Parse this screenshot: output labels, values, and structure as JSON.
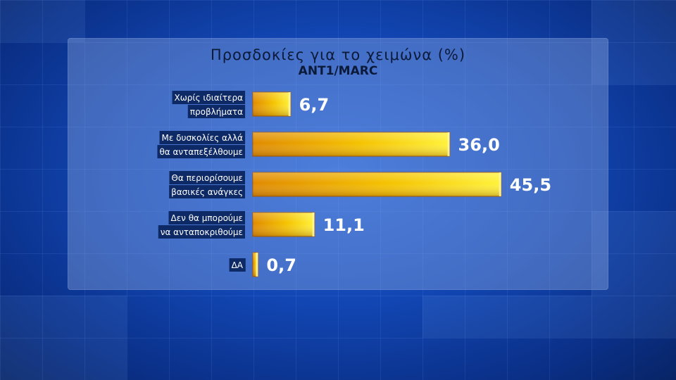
{
  "chart_data": {
    "type": "bar",
    "orientation": "horizontal",
    "title": "Προσδοκίες για το χειμώνα (%)",
    "subtitle": "ANT1/MARC",
    "categories": [
      [
        "Χωρίς ιδιαίτερα",
        "προβλήματα"
      ],
      [
        "Με δυσκολίες αλλά",
        "θα ανταπεξέλθουμε"
      ],
      [
        "Θα περιορίσουμε",
        "βασικές ανάγκες"
      ],
      [
        "Δεν θα μπορούμε",
        "να ανταποκριθούμε"
      ],
      [
        "ΔΑ"
      ]
    ],
    "values": [
      6.7,
      36.0,
      45.5,
      11.1,
      0.7
    ],
    "value_labels": [
      "6,7",
      "36,0",
      "45,5",
      "11,1",
      "0,7"
    ],
    "bar_color": "#f2c200",
    "label_bg_color": "#0e2a66"
  }
}
